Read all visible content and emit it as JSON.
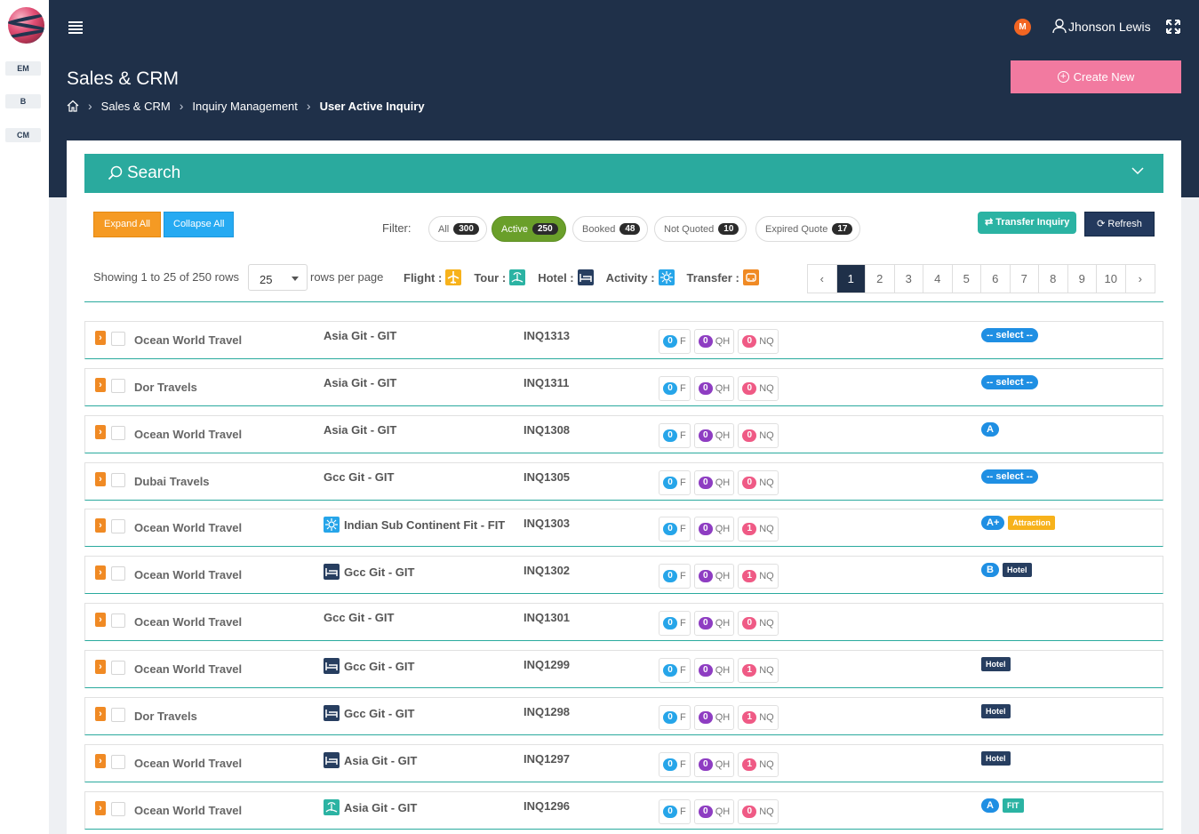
{
  "sidebar": {
    "tags": [
      "EM",
      "B",
      "CM"
    ]
  },
  "header": {
    "user_initial": "M",
    "user_name": "Jhonson Lewis",
    "page_title": "Sales & CRM",
    "breadcrumb": [
      "Sales & CRM",
      "Inquiry Management",
      "User Active Inquiry"
    ],
    "create_label": "Create New"
  },
  "search": {
    "label": "Search"
  },
  "toolbar": {
    "expand_all": "Expand All",
    "collapse_all": "Collapse All",
    "filter_label": "Filter:",
    "filters": [
      {
        "label": "All",
        "count": "300"
      },
      {
        "label": "Active",
        "count": "250"
      },
      {
        "label": "Booked",
        "count": "48"
      },
      {
        "label": "Not Quoted",
        "count": "10"
      },
      {
        "label": "Expired Quote",
        "count": "17"
      }
    ],
    "transfer_label": "Transfer Inquiry",
    "refresh_label": "Refresh"
  },
  "listing": {
    "showing": "Showing 1 to 25 of 250 rows",
    "per_page": "25",
    "rows_per_page": "rows per page",
    "legend": [
      "Flight :",
      "Tour :",
      "Hotel :",
      "Activity :",
      "Transfer :"
    ],
    "pages": [
      "‹",
      "1",
      "2",
      "3",
      "4",
      "5",
      "6",
      "7",
      "8",
      "9",
      "10",
      "›"
    ],
    "current_page": "1"
  },
  "colors": {
    "header_bg": "#1f3049",
    "accent_teal": "#2aaa9e",
    "create_pink": "#f27aa0",
    "flight": "#f7b21b",
    "tour": "#2bb3a3",
    "hotel": "#273e60",
    "activity": "#26a5e9",
    "transfer": "#f08a24"
  },
  "rows": [
    {
      "agency": "Ocean World Travel",
      "group": "Asia Git - GIT",
      "icon": "",
      "inquiry": "INQ1313",
      "f": "0",
      "qh": "0",
      "nq": "0",
      "tags": [
        {
          "type": "sel",
          "text": "-- select --"
        }
      ]
    },
    {
      "agency": "Dor Travels",
      "group": "Asia Git - GIT",
      "icon": "",
      "inquiry": "INQ1311",
      "f": "0",
      "qh": "0",
      "nq": "0",
      "tags": [
        {
          "type": "sel",
          "text": "-- select --"
        }
      ]
    },
    {
      "agency": "Ocean World Travel",
      "group": "Asia Git - GIT",
      "icon": "",
      "inquiry": "INQ1308",
      "f": "0",
      "qh": "0",
      "nq": "0",
      "tags": [
        {
          "type": "grade",
          "text": "A"
        }
      ]
    },
    {
      "agency": "Dubai Travels",
      "group": "Gcc Git - GIT",
      "icon": "",
      "inquiry": "INQ1305",
      "f": "0",
      "qh": "0",
      "nq": "0",
      "tags": [
        {
          "type": "sel",
          "text": "-- select --"
        }
      ]
    },
    {
      "agency": "Ocean World Travel",
      "group": "Indian Sub Continent Fit - FIT",
      "icon": "activity",
      "inquiry": "INQ1303",
      "f": "0",
      "qh": "0",
      "nq": "1",
      "tags": [
        {
          "type": "grade",
          "text": "A+"
        },
        {
          "type": "attr",
          "text": "Attraction"
        }
      ]
    },
    {
      "agency": "Ocean World Travel",
      "group": "Gcc Git - GIT",
      "icon": "hotel",
      "inquiry": "INQ1302",
      "f": "0",
      "qh": "0",
      "nq": "1",
      "tags": [
        {
          "type": "grade",
          "text": "B"
        },
        {
          "type": "hotel",
          "text": "Hotel"
        }
      ]
    },
    {
      "agency": "Ocean World Travel",
      "group": "Gcc Git - GIT",
      "icon": "",
      "inquiry": "INQ1301",
      "f": "0",
      "qh": "0",
      "nq": "0",
      "tags": []
    },
    {
      "agency": "Ocean World Travel",
      "group": "Gcc Git - GIT",
      "icon": "hotel",
      "inquiry": "INQ1299",
      "f": "0",
      "qh": "0",
      "nq": "1",
      "tags": [
        {
          "type": "hotel",
          "text": "Hotel"
        }
      ]
    },
    {
      "agency": "Dor Travels",
      "group": "Gcc Git - GIT",
      "icon": "hotel",
      "inquiry": "INQ1298",
      "f": "0",
      "qh": "0",
      "nq": "1",
      "tags": [
        {
          "type": "hotel",
          "text": "Hotel"
        }
      ]
    },
    {
      "agency": "Ocean World Travel",
      "group": "Asia Git - GIT",
      "icon": "hotel",
      "inquiry": "INQ1297",
      "f": "0",
      "qh": "0",
      "nq": "1",
      "tags": [
        {
          "type": "hotel",
          "text": "Hotel"
        }
      ]
    },
    {
      "agency": "Ocean World Travel",
      "group": "Asia Git - GIT",
      "icon": "tour",
      "inquiry": "INQ1296",
      "f": "0",
      "qh": "0",
      "nq": "0",
      "tags": [
        {
          "type": "grade",
          "text": "A"
        },
        {
          "type": "fit",
          "text": "FIT"
        }
      ]
    }
  ],
  "count_labels": {
    "f": "F",
    "qh": "QH",
    "nq": "NQ"
  }
}
